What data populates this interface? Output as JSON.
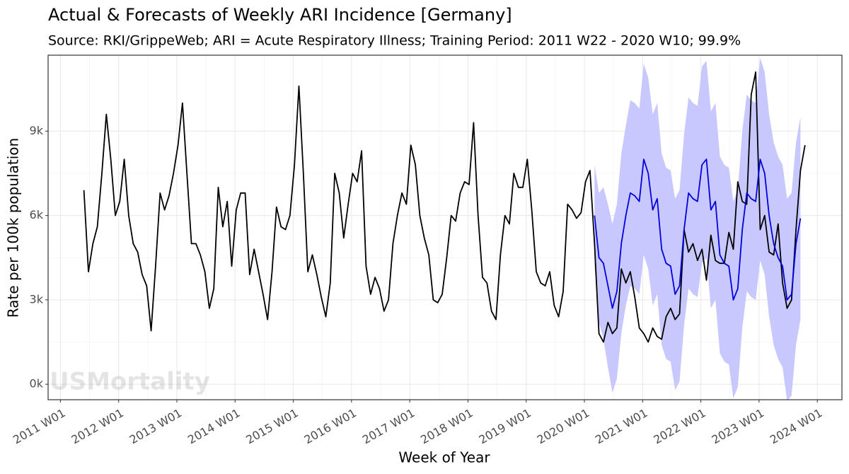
{
  "chart_data": {
    "type": "line",
    "title": "Actual & Forecasts of Weekly ARI Incidence [Germany]",
    "subtitle": "Source: RKI/GrippeWeb; ARI = Acute Respiratory Illness; Training Period: 2011 W22 - 2020 W10; 99.9%",
    "x_label": "Week of Year",
    "y_label": "Rate per 100k population",
    "watermark": "USMortality",
    "grid": true,
    "xlim": [
      "2010 W42",
      "2024 W23"
    ],
    "xticks": [
      "2011 W01",
      "2012 W01",
      "2013 W01",
      "2014 W01",
      "2015 W01",
      "2016 W01",
      "2017 W01",
      "2018 W01",
      "2019 W01",
      "2020 W01",
      "2021 W01",
      "2022 W01",
      "2023 W01",
      "2024 W01"
    ],
    "ylim": [
      -550,
      11700
    ],
    "yticks": [
      {
        "value": 0,
        "label": "0k"
      },
      {
        "value": 3000,
        "label": "3k"
      },
      {
        "value": 6000,
        "label": "6k"
      },
      {
        "value": 9000,
        "label": "9k"
      }
    ],
    "series": [
      {
        "color": "#000000",
        "x": [
          "2011 W22",
          "2011 W26",
          "2011 W30",
          "2011 W34",
          "2011 W38",
          "2011 W42",
          "2011 W46",
          "2011 W50",
          "2012 W02",
          "2012 W06",
          "2012 W10",
          "2012 W14",
          "2012 W18",
          "2012 W22",
          "2012 W26",
          "2012 W30",
          "2012 W34",
          "2012 W38",
          "2012 W42",
          "2012 W46",
          "2012 W50",
          "2013 W02",
          "2013 W06",
          "2013 W10",
          "2013 W14",
          "2013 W18",
          "2013 W22",
          "2013 W26",
          "2013 W30",
          "2013 W34",
          "2013 W38",
          "2013 W42",
          "2013 W46",
          "2013 W50",
          "2014 W02",
          "2014 W06",
          "2014 W10",
          "2014 W14",
          "2014 W18",
          "2014 W22",
          "2014 W26",
          "2014 W30",
          "2014 W34",
          "2014 W38",
          "2014 W42",
          "2014 W46",
          "2014 W50",
          "2015 W02",
          "2015 W06",
          "2015 W10",
          "2015 W14",
          "2015 W18",
          "2015 W22",
          "2015 W26",
          "2015 W30",
          "2015 W34",
          "2015 W38",
          "2015 W42",
          "2015 W46",
          "2015 W50",
          "2016 W02",
          "2016 W06",
          "2016 W10",
          "2016 W14",
          "2016 W18",
          "2016 W22",
          "2016 W26",
          "2016 W30",
          "2016 W34",
          "2016 W38",
          "2016 W42",
          "2016 W46",
          "2016 W50",
          "2017 W02",
          "2017 W06",
          "2017 W10",
          "2017 W14",
          "2017 W18",
          "2017 W22",
          "2017 W26",
          "2017 W30",
          "2017 W34",
          "2017 W38",
          "2017 W42",
          "2017 W46",
          "2017 W50",
          "2018 W02",
          "2018 W06",
          "2018 W10",
          "2018 W14",
          "2018 W18",
          "2018 W22",
          "2018 W26",
          "2018 W30",
          "2018 W34",
          "2018 W38",
          "2018 W42",
          "2018 W46",
          "2018 W50",
          "2019 W02",
          "2019 W06",
          "2019 W10",
          "2019 W14",
          "2019 W18",
          "2019 W22",
          "2019 W26",
          "2019 W30",
          "2019 W34",
          "2019 W38",
          "2019 W42",
          "2019 W46",
          "2019 W50",
          "2020 W02",
          "2020 W06",
          "2020 W10",
          "2020 W14",
          "2020 W18",
          "2020 W22",
          "2020 W26",
          "2020 W30",
          "2020 W34",
          "2020 W38",
          "2020 W42",
          "2020 W46",
          "2020 W50",
          "2021 W02",
          "2021 W06",
          "2021 W10",
          "2021 W14",
          "2021 W18",
          "2021 W22",
          "2021 W26",
          "2021 W30",
          "2021 W34",
          "2021 W38",
          "2021 W42",
          "2021 W46",
          "2021 W50",
          "2022 W02",
          "2022 W06",
          "2022 W10",
          "2022 W14",
          "2022 W18",
          "2022 W22",
          "2022 W26",
          "2022 W30",
          "2022 W34",
          "2022 W38",
          "2022 W42",
          "2022 W46",
          "2022 W50",
          "2023 W02",
          "2023 W06",
          "2023 W10",
          "2023 W14",
          "2023 W18",
          "2023 W22",
          "2023 W26",
          "2023 W30",
          "2023 W34",
          "2023 W38",
          "2023 W42"
        ],
        "values": [
          6900,
          4000,
          5000,
          5600,
          7500,
          9600,
          8000,
          6000,
          6500,
          8000,
          6000,
          5000,
          4700,
          3900,
          3500,
          1900,
          4200,
          6800,
          6200,
          6700,
          7500,
          8500,
          10000,
          7500,
          5000,
          5000,
          4600,
          4000,
          2700,
          3400,
          7000,
          5600,
          6500,
          4200,
          6200,
          6800,
          6800,
          3900,
          4800,
          4000,
          3200,
          2300,
          4000,
          6300,
          5600,
          5500,
          6000,
          7800,
          10600,
          7500,
          4000,
          4600,
          3900,
          3100,
          2400,
          3600,
          7500,
          6800,
          5200,
          6400,
          7500,
          7200,
          8300,
          4200,
          3200,
          3800,
          3400,
          2600,
          3000,
          5000,
          6000,
          6800,
          6400,
          8500,
          7800,
          6000,
          5200,
          4600,
          3000,
          2900,
          3200,
          4500,
          6000,
          5800,
          6800,
          7200,
          7100,
          9300,
          6000,
          3800,
          3600,
          2600,
          2300,
          4600,
          6000,
          5700,
          7500,
          7000,
          7000,
          8000,
          6200,
          4000,
          3600,
          3500,
          4000,
          2800,
          2400,
          3300,
          6400,
          6200,
          5900,
          6100,
          7200,
          7600,
          5000,
          1800,
          1500,
          2200,
          1800,
          2000,
          4100,
          3600,
          4000,
          3100,
          2000,
          1800,
          1500,
          2000,
          1700,
          1600,
          2400,
          2700,
          2300,
          2500,
          5500,
          4700,
          5000,
          4400,
          4800,
          3700,
          5300,
          4400,
          4300,
          4300,
          5400,
          4800,
          7200,
          6500,
          6400,
          10300,
          11100,
          5500,
          6000,
          4700,
          4600,
          5700,
          3600,
          2700,
          3000,
          5500,
          7600,
          8500
        ]
      },
      {
        "color": "#0000dd",
        "band_color": "#c8c8ff",
        "x": [
          "2020 W10",
          "2020 W14",
          "2020 W18",
          "2020 W22",
          "2020 W26",
          "2020 W30",
          "2020 W34",
          "2020 W38",
          "2020 W42",
          "2020 W46",
          "2020 W50",
          "2021 W02",
          "2021 W06",
          "2021 W10",
          "2021 W14",
          "2021 W18",
          "2021 W22",
          "2021 W26",
          "2021 W30",
          "2021 W34",
          "2021 W38",
          "2021 W42",
          "2021 W46",
          "2021 W50",
          "2022 W02",
          "2022 W06",
          "2022 W10",
          "2022 W14",
          "2022 W18",
          "2022 W22",
          "2022 W26",
          "2022 W30",
          "2022 W34",
          "2022 W38",
          "2022 W42",
          "2022 W46",
          "2022 W50",
          "2023 W02",
          "2023 W06",
          "2023 W10",
          "2023 W14",
          "2023 W18",
          "2023 W22",
          "2023 W26",
          "2023 W30",
          "2023 W34",
          "2023 W38"
        ],
        "values": [
          6000,
          4500,
          4300,
          3500,
          2700,
          3300,
          5000,
          6000,
          6800,
          6700,
          6500,
          8000,
          7500,
          6200,
          6600,
          4800,
          4300,
          4200,
          3200,
          3500,
          5500,
          6800,
          6600,
          6500,
          7800,
          8000,
          6200,
          6500,
          4600,
          4300,
          4200,
          3000,
          3400,
          5500,
          6800,
          6600,
          6500,
          8000,
          7500,
          6000,
          5000,
          4500,
          4200,
          3000,
          3200,
          5000,
          5900
        ],
        "lower": [
          4200,
          2200,
          1600,
          600,
          -300,
          200,
          1800,
          2800,
          3500,
          3400,
          3200,
          4600,
          4100,
          2800,
          3200,
          1400,
          900,
          800,
          -200,
          100,
          2100,
          3400,
          3200,
          3100,
          4300,
          4500,
          2700,
          3000,
          1100,
          800,
          700,
          -500,
          -100,
          2000,
          3300,
          3100,
          3000,
          4400,
          3900,
          2400,
          1400,
          900,
          600,
          -600,
          -400,
          1400,
          2300
        ],
        "upper": [
          7800,
          6800,
          7000,
          6400,
          5700,
          6400,
          8200,
          9200,
          10100,
          10000,
          9800,
          11400,
          10900,
          9600,
          10000,
          8200,
          7700,
          7600,
          6600,
          6900,
          8900,
          10200,
          10000,
          9900,
          11300,
          11500,
          9700,
          10000,
          8100,
          7800,
          7700,
          6500,
          6900,
          9000,
          10300,
          10100,
          10000,
          11600,
          11100,
          9600,
          8600,
          8100,
          7800,
          6600,
          6800,
          8600,
          9500
        ]
      }
    ]
  }
}
